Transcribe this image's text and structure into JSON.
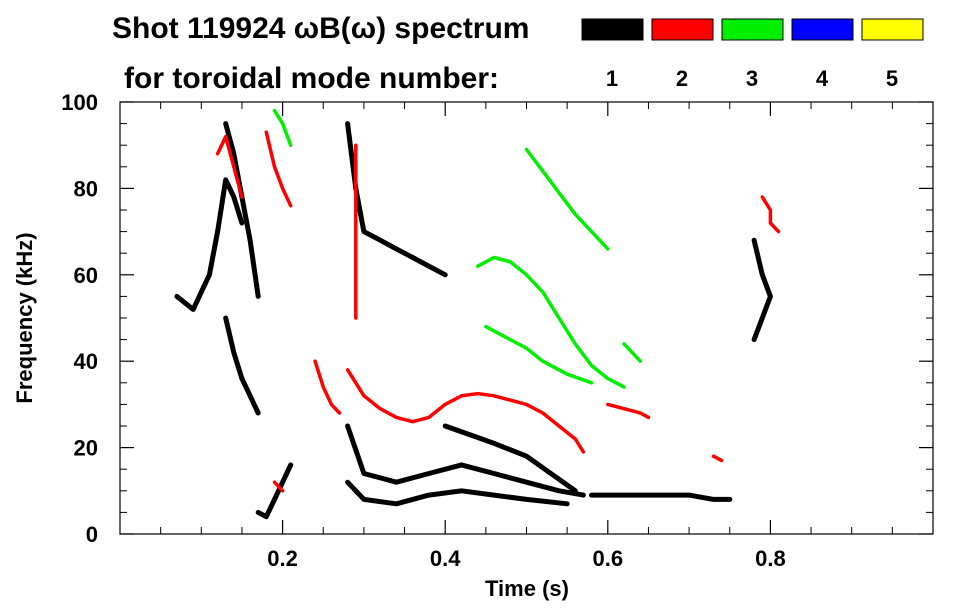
{
  "chart_data": {
    "type": "scatter",
    "title": "Shot 119924 ωB(ω) spectrum",
    "legend_title": "for toroidal mode number:",
    "xlabel": "Time (s)",
    "ylabel": "Frequency (kHz)",
    "xlim": [
      0.0,
      1.0
    ],
    "ylim": [
      0,
      100
    ],
    "x_ticks": [
      0.2,
      0.4,
      0.6,
      0.8
    ],
    "x_tick_labels": [
      "0.2",
      "0.4",
      "0.6",
      "0.8"
    ],
    "y_ticks": [
      0,
      20,
      40,
      60,
      80,
      100
    ],
    "y_tick_labels": [
      "0",
      "20",
      "40",
      "60",
      "80",
      "100"
    ],
    "legend_position": "top-right",
    "series": [
      {
        "name": "1",
        "color": "#000000",
        "segments": [
          [
            [
              0.07,
              55
            ],
            [
              0.09,
              52
            ],
            [
              0.1,
              56
            ],
            [
              0.11,
              60
            ],
            [
              0.12,
              70
            ],
            [
              0.13,
              82
            ],
            [
              0.14,
              78
            ],
            [
              0.15,
              72
            ]
          ],
          [
            [
              0.13,
              95
            ],
            [
              0.14,
              88
            ],
            [
              0.15,
              78
            ],
            [
              0.16,
              68
            ],
            [
              0.17,
              55
            ]
          ],
          [
            [
              0.13,
              50
            ],
            [
              0.14,
              42
            ],
            [
              0.15,
              36
            ],
            [
              0.16,
              32
            ],
            [
              0.17,
              28
            ]
          ],
          [
            [
              0.17,
              5
            ],
            [
              0.18,
              4
            ],
            [
              0.19,
              8
            ],
            [
              0.2,
              12
            ],
            [
              0.21,
              16
            ]
          ],
          [
            [
              0.28,
              95
            ],
            [
              0.29,
              80
            ],
            [
              0.3,
              70
            ],
            [
              0.32,
              68
            ],
            [
              0.34,
              66
            ],
            [
              0.36,
              64
            ],
            [
              0.38,
              62
            ],
            [
              0.4,
              60
            ]
          ],
          [
            [
              0.28,
              25
            ],
            [
              0.3,
              14
            ],
            [
              0.34,
              12
            ],
            [
              0.38,
              14
            ],
            [
              0.42,
              16
            ],
            [
              0.46,
              14
            ],
            [
              0.5,
              12
            ],
            [
              0.54,
              10
            ],
            [
              0.57,
              9
            ]
          ],
          [
            [
              0.28,
              12
            ],
            [
              0.3,
              8
            ],
            [
              0.34,
              7
            ],
            [
              0.38,
              9
            ],
            [
              0.42,
              10
            ],
            [
              0.46,
              9
            ],
            [
              0.5,
              8
            ],
            [
              0.55,
              7
            ]
          ],
          [
            [
              0.4,
              25
            ],
            [
              0.43,
              23
            ],
            [
              0.46,
              21
            ],
            [
              0.5,
              18
            ],
            [
              0.53,
              14
            ],
            [
              0.56,
              10
            ]
          ],
          [
            [
              0.58,
              9
            ],
            [
              0.62,
              9
            ],
            [
              0.66,
              9
            ],
            [
              0.7,
              9
            ],
            [
              0.73,
              8
            ],
            [
              0.75,
              8
            ]
          ],
          [
            [
              0.78,
              68
            ],
            [
              0.79,
              60
            ],
            [
              0.8,
              55
            ],
            [
              0.79,
              50
            ],
            [
              0.78,
              45
            ]
          ]
        ]
      },
      {
        "name": "2",
        "color": "#ff0000",
        "segments": [
          [
            [
              0.12,
              88
            ],
            [
              0.13,
              92
            ],
            [
              0.14,
              85
            ],
            [
              0.15,
              78
            ]
          ],
          [
            [
              0.18,
              93
            ],
            [
              0.19,
              85
            ],
            [
              0.2,
              80
            ],
            [
              0.21,
              76
            ]
          ],
          [
            [
              0.24,
              40
            ],
            [
              0.25,
              34
            ],
            [
              0.26,
              30
            ],
            [
              0.27,
              28
            ]
          ],
          [
            [
              0.29,
              90
            ],
            [
              0.29,
              70
            ],
            [
              0.29,
              50
            ]
          ],
          [
            [
              0.28,
              38
            ],
            [
              0.3,
              32
            ],
            [
              0.32,
              29
            ],
            [
              0.34,
              27
            ],
            [
              0.36,
              26
            ],
            [
              0.38,
              27
            ],
            [
              0.4,
              30
            ],
            [
              0.42,
              32
            ],
            [
              0.44,
              32.5
            ],
            [
              0.46,
              32
            ],
            [
              0.48,
              31
            ],
            [
              0.5,
              30
            ],
            [
              0.52,
              28
            ],
            [
              0.54,
              25
            ],
            [
              0.56,
              22
            ],
            [
              0.57,
              19
            ]
          ],
          [
            [
              0.6,
              30
            ],
            [
              0.62,
              29
            ],
            [
              0.64,
              28
            ],
            [
              0.65,
              27
            ]
          ],
          [
            [
              0.79,
              78
            ],
            [
              0.8,
              75
            ],
            [
              0.8,
              72
            ],
            [
              0.81,
              70
            ]
          ],
          [
            [
              0.19,
              12
            ],
            [
              0.2,
              10
            ]
          ],
          [
            [
              0.73,
              18
            ],
            [
              0.74,
              17
            ]
          ]
        ]
      },
      {
        "name": "3",
        "color": "#00ee00",
        "segments": [
          [
            [
              0.19,
              98
            ],
            [
              0.2,
              95
            ],
            [
              0.21,
              90
            ]
          ],
          [
            [
              0.5,
              89
            ],
            [
              0.52,
              84
            ],
            [
              0.54,
              79
            ],
            [
              0.56,
              74
            ],
            [
              0.58,
              70
            ],
            [
              0.6,
              66
            ]
          ],
          [
            [
              0.44,
              62
            ],
            [
              0.46,
              64
            ],
            [
              0.48,
              63
            ],
            [
              0.5,
              60
            ],
            [
              0.52,
              56
            ],
            [
              0.54,
              50
            ],
            [
              0.56,
              44
            ],
            [
              0.58,
              39
            ],
            [
              0.6,
              36
            ],
            [
              0.62,
              34
            ]
          ],
          [
            [
              0.45,
              48
            ],
            [
              0.47,
              46
            ],
            [
              0.5,
              43
            ],
            [
              0.52,
              40
            ],
            [
              0.55,
              37
            ],
            [
              0.58,
              35
            ]
          ],
          [
            [
              0.62,
              44
            ],
            [
              0.63,
              42
            ],
            [
              0.64,
              40
            ]
          ]
        ]
      },
      {
        "name": "4",
        "color": "#0000ff",
        "segments": []
      },
      {
        "name": "5",
        "color": "#ffff00",
        "segments": []
      }
    ]
  }
}
